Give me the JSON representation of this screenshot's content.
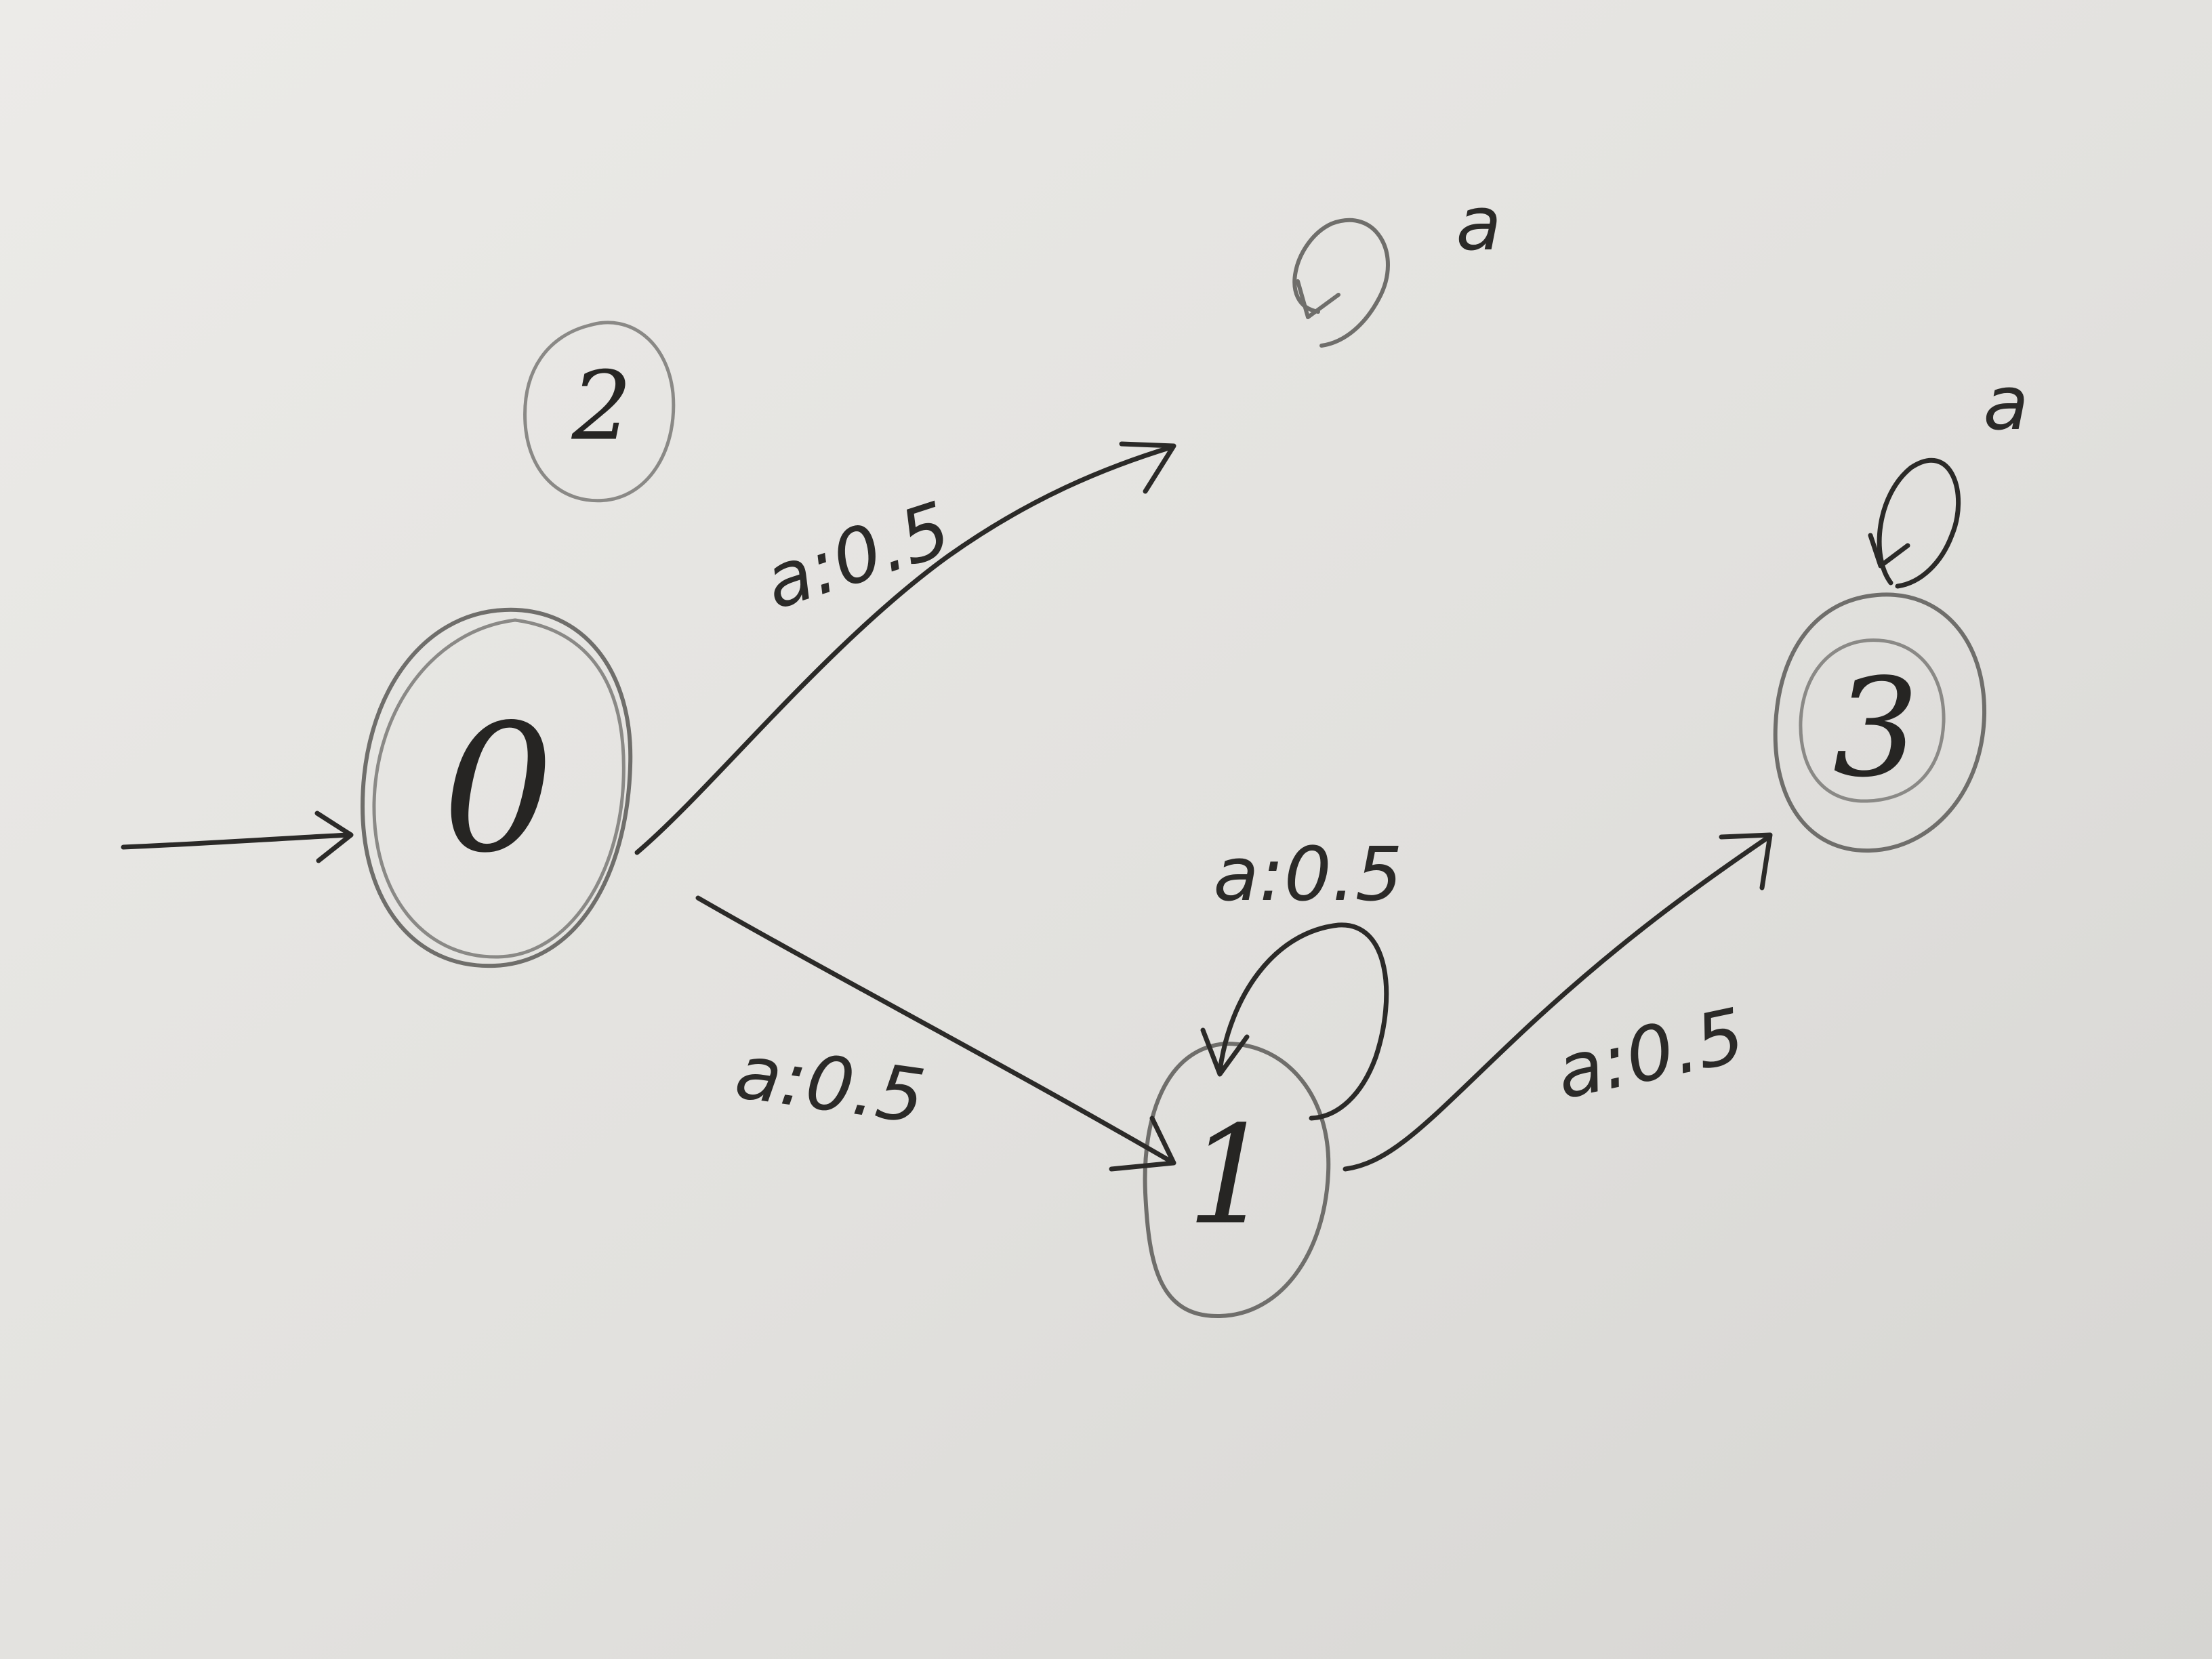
{
  "diagram": {
    "type": "weighted finite-state automaton (hand-drawn)",
    "initial_state": "0",
    "final_states": [
      "0",
      "3"
    ],
    "states": [
      {
        "id": "0",
        "label": "0"
      },
      {
        "id": "1",
        "label": "1"
      },
      {
        "id": "2",
        "label": "2"
      },
      {
        "id": "3",
        "label": "3"
      }
    ],
    "edges": [
      {
        "from": "0",
        "to": "2",
        "label": "a:0.5"
      },
      {
        "from": "0",
        "to": "1",
        "label": "a:0.5"
      },
      {
        "from": "1",
        "to": "1",
        "label": "a:0.5"
      },
      {
        "from": "1",
        "to": "3",
        "label": "a:0.5"
      },
      {
        "from": "2",
        "to": "2",
        "label": "a"
      },
      {
        "from": "3",
        "to": "3",
        "label": "a"
      }
    ],
    "colors": {
      "paper": "#e3e3e0",
      "ink": "#2b2a28",
      "pencil": "#6f6e6b"
    }
  }
}
